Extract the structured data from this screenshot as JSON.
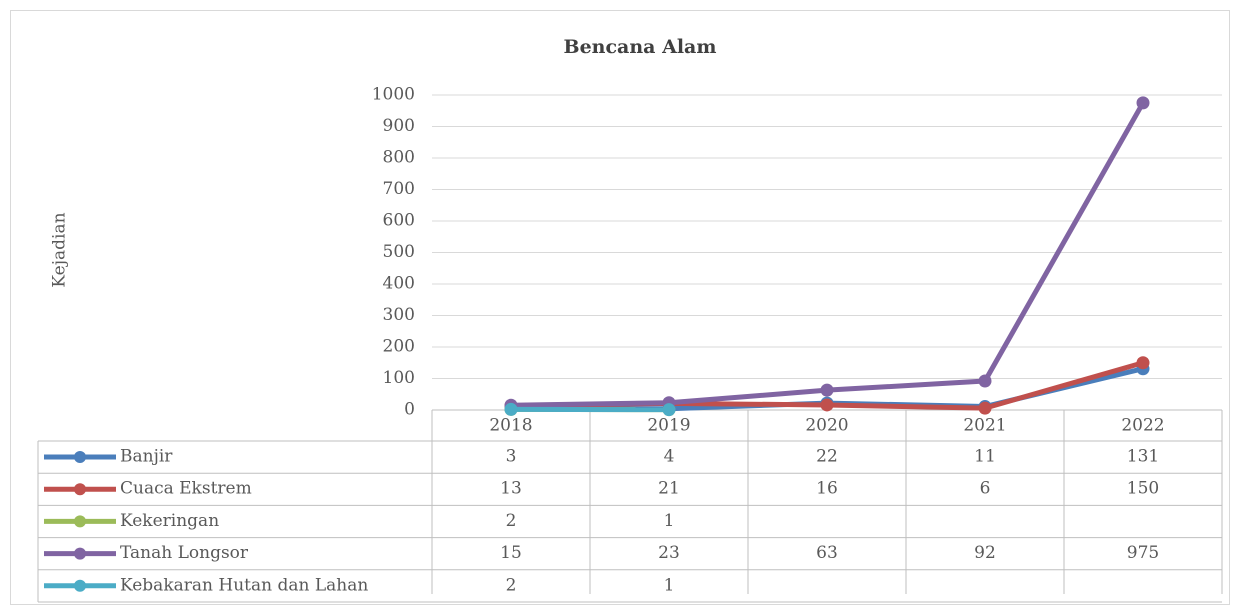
{
  "chart_data": {
    "type": "line",
    "title": "Bencana Alam",
    "y_label": "Kejadian",
    "categories": [
      "2018",
      "2019",
      "2020",
      "2021",
      "2022"
    ],
    "series": [
      {
        "name": "Banjir",
        "color": "#4a7ebb",
        "values": [
          3,
          4,
          22,
          11,
          131
        ]
      },
      {
        "name": "Cuaca Ekstrem",
        "color": "#c0504d",
        "values": [
          13,
          21,
          16,
          6,
          150
        ]
      },
      {
        "name": "Kekeringan",
        "color": "#9bbb59",
        "values": [
          2,
          1,
          null,
          null,
          null
        ]
      },
      {
        "name": "Tanah Longsor",
        "color": "#8064a2",
        "values": [
          15,
          23,
          63,
          92,
          975
        ]
      },
      {
        "name": "Kebakaran Hutan dan Lahan",
        "color": "#4bacc6",
        "values": [
          2,
          1,
          null,
          null,
          null
        ]
      }
    ],
    "ylim": [
      0,
      1000
    ],
    "yticks": [
      0,
      100,
      200,
      300,
      400,
      500,
      600,
      700,
      800,
      900,
      1000
    ],
    "grid": true,
    "data_table": true
  }
}
